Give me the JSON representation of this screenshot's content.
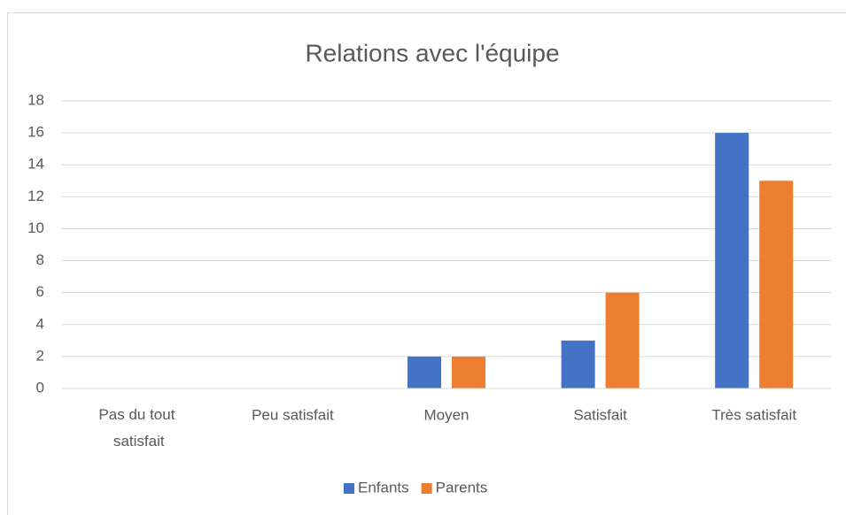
{
  "chart_data": {
    "type": "bar",
    "title": "Relations avec l'équipe",
    "categories": [
      "Pas du tout satisfait",
      "Peu satisfait",
      "Moyen",
      "Satisfait",
      "Très satisfait"
    ],
    "series": [
      {
        "name": "Enfants",
        "color": "#4472c4",
        "values": [
          0,
          0,
          2,
          3,
          16
        ]
      },
      {
        "name": "Parents",
        "color": "#ed7d31",
        "values": [
          0,
          0,
          2,
          6,
          13
        ]
      }
    ],
    "ylim": [
      0,
      18
    ],
    "yticks": [
      0,
      2,
      4,
      6,
      8,
      10,
      12,
      14,
      16,
      18
    ],
    "grid": true,
    "legend": "bottom"
  }
}
